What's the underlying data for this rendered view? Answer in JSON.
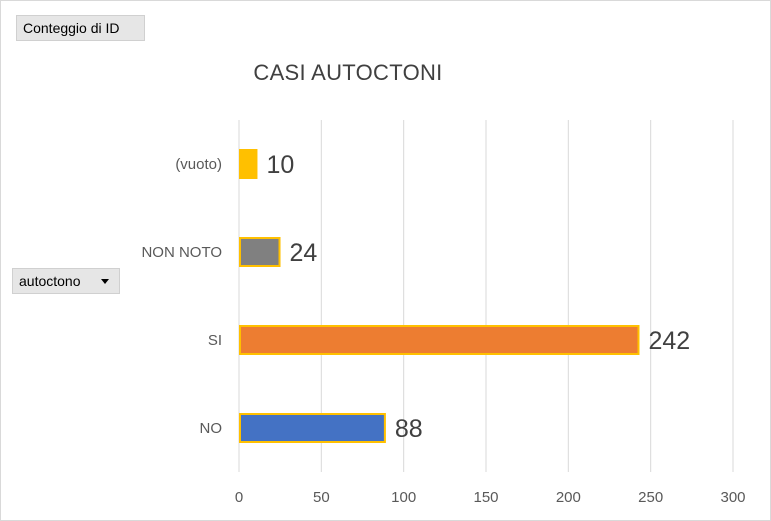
{
  "value_field_label": "Conteggio di ID",
  "axis_field_label": "autoctono",
  "chart_data": {
    "type": "bar",
    "orientation": "horizontal",
    "title": "CASI AUTOCTONI",
    "categories": [
      "(vuoto)",
      "NON NOTO",
      "SI",
      "NO"
    ],
    "values": [
      10,
      24,
      242,
      88
    ],
    "colors": [
      "#FFC000",
      "#808080",
      "#ED7D31",
      "#4472C4"
    ],
    "bar_outline_color": "#FFC000",
    "xlim": [
      0,
      300
    ],
    "xticks": [
      0,
      50,
      100,
      150,
      200,
      250,
      300
    ],
    "grid": true,
    "data_labels": true,
    "legend": "none"
  }
}
